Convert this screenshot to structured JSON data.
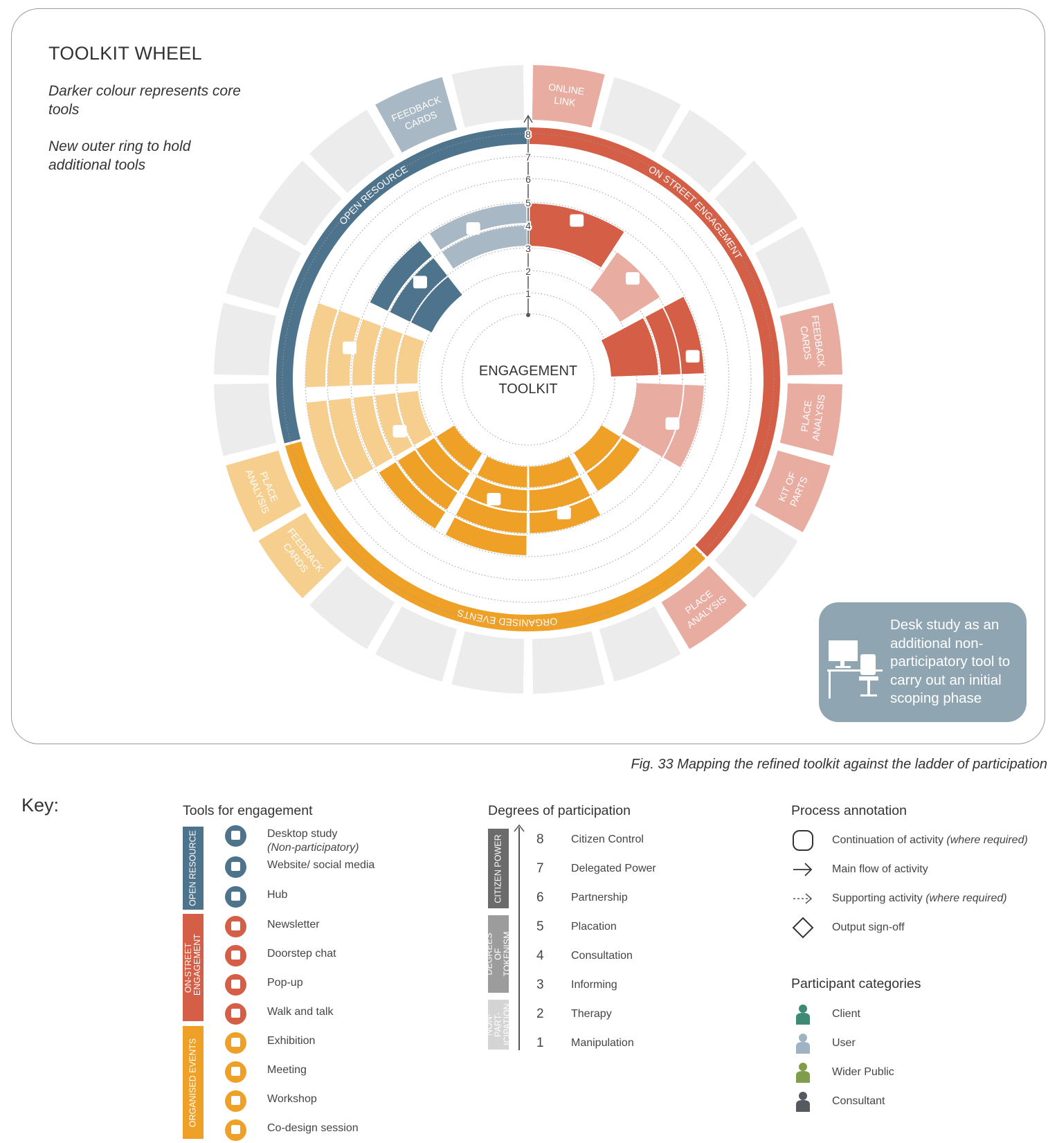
{
  "wheel": {
    "title": "TOOLKIT WHEEL",
    "note_core": "Darker colour represents core tools",
    "note_ring": "New outer ring to hold additional tools",
    "center_line1": "ENGAGEMENT",
    "center_line2": "TOOLKIT",
    "scale": [
      "1",
      "2",
      "3",
      "4",
      "5",
      "6",
      "7",
      "8"
    ],
    "groups": [
      {
        "name": "OPEN RESOURCE",
        "color": "#4e738c",
        "light": "#a8b8c4"
      },
      {
        "name": "ON STREET ENGAGEMENT",
        "color": "#d45e46",
        "light": "#e8aca0"
      },
      {
        "name": "ORGANISED EVENTS",
        "color": "#eea126",
        "light": "#f6cf8f"
      }
    ],
    "outer_tools": [
      {
        "lines": [
          "ONLINE",
          "LINK"
        ],
        "group": "on_street"
      },
      {
        "lines": [
          "FEEDBACK",
          "CARDS"
        ],
        "group": "on_street"
      },
      {
        "lines": [
          "PLACE",
          "ANALYSIS"
        ],
        "group": "on_street"
      },
      {
        "lines": [
          "KIT OF",
          "PARTS"
        ],
        "group": "on_street"
      },
      {
        "lines": [
          "PLACE",
          "ANALYSIS"
        ],
        "group": "on_street"
      },
      {
        "lines": [
          "FEEDBACK",
          "CARDS"
        ],
        "group": "organised"
      },
      {
        "lines": [
          "PLACE",
          "ANALYSIS"
        ],
        "group": "organised"
      },
      {
        "lines": [
          "FEEDBACK",
          "CARDS"
        ],
        "group": "open"
      }
    ],
    "desk_note": "Desk study as an additional non-participatory tool to carry out an initial scoping phase"
  },
  "caption": "Fig. 33 Mapping the refined toolkit against the ladder of participation",
  "key": {
    "title": "Key:",
    "tools": {
      "title": "Tools for engagement",
      "bands": [
        {
          "label": "OPEN RESOURCE",
          "color": "#4e738c"
        },
        {
          "label": "ON-STREET ENGAGEMENT",
          "color": "#d45e46"
        },
        {
          "label": "ORGANISED EVENTS",
          "color": "#eea126"
        }
      ],
      "items": [
        {
          "label": "Desktop study",
          "sub": "(Non-participatory)",
          "icon": "desktop-icon",
          "color": "#4e738c"
        },
        {
          "label": "Website/ social media",
          "icon": "website-icon",
          "color": "#4e738c"
        },
        {
          "label": "Hub",
          "icon": "house-icon",
          "color": "#4e738c"
        },
        {
          "label": "Newsletter",
          "icon": "newsletter-icon",
          "color": "#d45e46"
        },
        {
          "label": "Doorstep chat",
          "icon": "door-icon",
          "color": "#d45e46"
        },
        {
          "label": "Pop-up",
          "icon": "popup-icon",
          "color": "#d45e46"
        },
        {
          "label": "Walk and talk",
          "icon": "walking-people-icon",
          "color": "#d45e46"
        },
        {
          "label": "Exhibition",
          "icon": "exhibition-icon",
          "color": "#eea126"
        },
        {
          "label": "Meeting",
          "icon": "meeting-icon",
          "color": "#eea126"
        },
        {
          "label": "Workshop",
          "icon": "workshop-icon",
          "color": "#eea126"
        },
        {
          "label": "Co-design session",
          "icon": "codesign-icon",
          "color": "#eea126"
        }
      ]
    },
    "degrees": {
      "title": "Degrees of participation",
      "bands": [
        {
          "label": "CITIZEN POWER",
          "color": "#6b6b6b"
        },
        {
          "label": "DEGREES OF TOKENISM",
          "color": "#9c9c9c"
        },
        {
          "label": "NON-PART-ICIPATION",
          "color": "#d4d4d4"
        }
      ],
      "levels": [
        {
          "n": "8",
          "label": "Citizen Control"
        },
        {
          "n": "7",
          "label": "Delegated Power"
        },
        {
          "n": "6",
          "label": "Partnership"
        },
        {
          "n": "5",
          "label": "Placation"
        },
        {
          "n": "4",
          "label": "Consultation"
        },
        {
          "n": "3",
          "label": "Informing"
        },
        {
          "n": "2",
          "label": "Therapy"
        },
        {
          "n": "1",
          "label": "Manipulation"
        }
      ]
    },
    "process": {
      "title": "Process annotation",
      "items": [
        {
          "label": "Continuation of activity",
          "note": "(where required)",
          "icon": "rounded-square-icon"
        },
        {
          "label": "Main flow of activity",
          "icon": "arrow-icon"
        },
        {
          "label": "Supporting activity",
          "note": "(where required)",
          "icon": "dashed-arrow-icon"
        },
        {
          "label": "Output sign-off",
          "icon": "diamond-icon"
        }
      ]
    },
    "participants": {
      "title": "Participant categories",
      "items": [
        {
          "label": "Client",
          "color": "#3f8a75",
          "icon": "client-person-icon"
        },
        {
          "label": "User",
          "color": "#9fb3c4",
          "icon": "user-group-icon"
        },
        {
          "label": "Wider Public",
          "color": "#7f9d4a",
          "icon": "public-group-icon"
        },
        {
          "label": "Consultant",
          "color": "#555a60",
          "icon": "consultant-person-icon"
        }
      ]
    }
  }
}
